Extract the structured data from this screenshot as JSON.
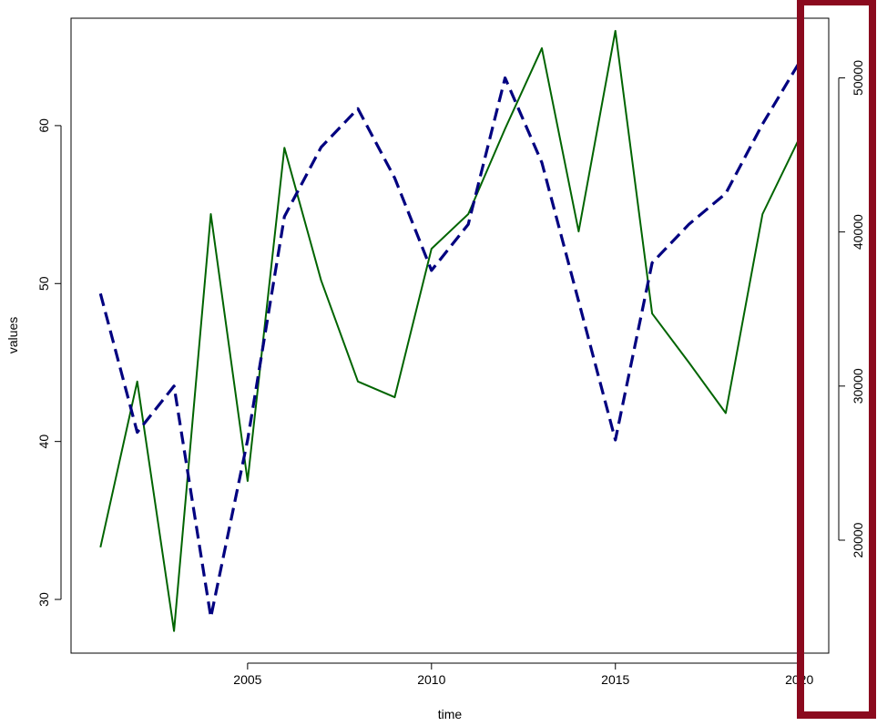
{
  "chart_data": {
    "type": "line",
    "xlabel": "time",
    "ylabel": "values",
    "x_ticks": [
      2005,
      2010,
      2015,
      2020
    ],
    "y_left_ticks": [
      30,
      40,
      50,
      60
    ],
    "y_right_ticks": [
      20000,
      30000,
      40000,
      50000
    ],
    "xlim": [
      2000.2,
      2020.8
    ],
    "ylim_left": [
      26.6,
      66.8
    ],
    "ylim_right": [
      12670,
      53870
    ],
    "grid": false,
    "series": [
      {
        "axis": "left",
        "style": "solid",
        "color": "#006400",
        "points": [
          [
            2001,
            33.3
          ],
          [
            2002,
            43.8
          ],
          [
            2003,
            28.0
          ],
          [
            2004,
            54.4
          ],
          [
            2005,
            37.5
          ],
          [
            2006,
            58.6
          ],
          [
            2007,
            50.2
          ],
          [
            2008,
            43.8
          ],
          [
            2009,
            42.8
          ],
          [
            2010,
            52.2
          ],
          [
            2011,
            54.4
          ],
          [
            2012,
            59.8
          ],
          [
            2013,
            64.9
          ],
          [
            2014,
            53.3
          ],
          [
            2015,
            66.0
          ],
          [
            2016,
            48.1
          ],
          [
            2017,
            45.0
          ],
          [
            2018,
            41.8
          ],
          [
            2019,
            54.4
          ],
          [
            2020,
            59.2
          ]
        ]
      },
      {
        "axis": "right",
        "style": "dashed",
        "color": "#000080",
        "points": [
          [
            2001,
            36000
          ],
          [
            2002,
            27000
          ],
          [
            2003,
            30000
          ],
          [
            2004,
            15000
          ],
          [
            2005,
            26500
          ],
          [
            2006,
            41000
          ],
          [
            2007,
            45500
          ],
          [
            2008,
            48000
          ],
          [
            2009,
            43500
          ],
          [
            2010,
            37500
          ],
          [
            2011,
            40500
          ],
          [
            2012,
            50000
          ],
          [
            2013,
            44500
          ],
          [
            2014,
            35500
          ],
          [
            2015,
            26500
          ],
          [
            2016,
            38000
          ],
          [
            2017,
            40500
          ],
          [
            2018,
            42500
          ],
          [
            2019,
            47000
          ],
          [
            2020,
            51000
          ]
        ]
      }
    ],
    "highlight_box_color": "#8b0a1e"
  }
}
